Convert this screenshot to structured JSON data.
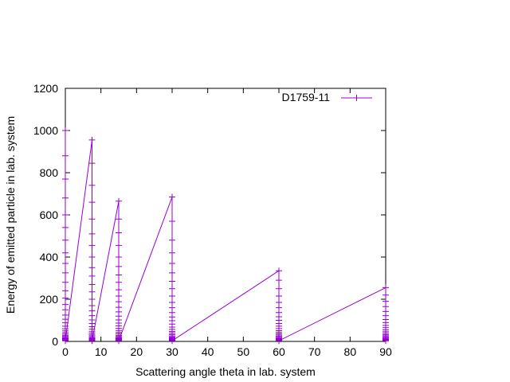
{
  "chart_data": {
    "type": "line",
    "xlabel": "Scattering angle theta in lab. system",
    "ylabel": "Energy of emitted particle in lab. system",
    "xlim": [
      0,
      90
    ],
    "ylim": [
      0,
      1200
    ],
    "xticks": [
      0,
      10,
      20,
      30,
      40,
      50,
      60,
      70,
      80,
      90
    ],
    "yticks": [
      0,
      200,
      400,
      600,
      800,
      1000,
      1200
    ],
    "grid": false,
    "legend_position": "top-right",
    "series": [
      {
        "name": "D1759-11",
        "color": "#9400d3",
        "marker": "plus",
        "groups": [
          {
            "x": 0.0,
            "values": [
              1000,
              880,
              770,
              680,
              600,
              540,
              480,
              420,
              370,
              325,
              280,
              240,
              205,
              175,
              150,
              125,
              105,
              88,
              72,
              60,
              50,
              42,
              35,
              29,
              24,
              19,
              15,
              12,
              9,
              7,
              5,
              3
            ]
          },
          {
            "x": 7.5,
            "values": [
              955,
              845,
              740,
              660,
              580,
              510,
              455,
              400,
              350,
              310,
              270,
              235,
              200,
              170,
              145,
              122,
              102,
              85,
              70,
              58,
              48,
              40,
              33,
              27,
              22,
              17,
              13,
              10,
              7,
              5,
              3
            ]
          },
          {
            "x": 15.0,
            "values": [
              665,
              580,
              515,
              455,
              400,
              355,
              315,
              280,
              245,
              215,
              188,
              162,
              140,
              120,
              102,
              87,
              74,
              62,
              52,
              43,
              36,
              29,
              24,
              19,
              15,
              12,
              9,
              7,
              5,
              3
            ]
          },
          {
            "x": 30.0,
            "values": [
              685,
              570,
              480,
              420,
              370,
              325,
              285,
              250,
              215,
              185,
              160,
              137,
              116,
              98,
              82,
              68,
              57,
              47,
              39,
              32,
              26,
              21,
              17,
              13,
              10,
              8,
              6,
              4,
              3
            ]
          },
          {
            "x": 60.0,
            "values": [
              335,
              290,
              250,
              215,
              185,
              160,
              137,
              117,
              100,
              85,
              72,
              61,
              51,
              43,
              36,
              30,
              25,
              20,
              16,
              13,
              10,
              8,
              6,
              4,
              3
            ]
          },
          {
            "x": 90.0,
            "values": [
              255,
              220,
              190,
              165,
              142,
              122,
              104,
              89,
              76,
              65,
              55,
              46,
              39,
              32,
              27,
              22,
              18,
              14,
              11,
              9,
              7,
              5,
              4,
              3
            ]
          }
        ]
      }
    ]
  }
}
